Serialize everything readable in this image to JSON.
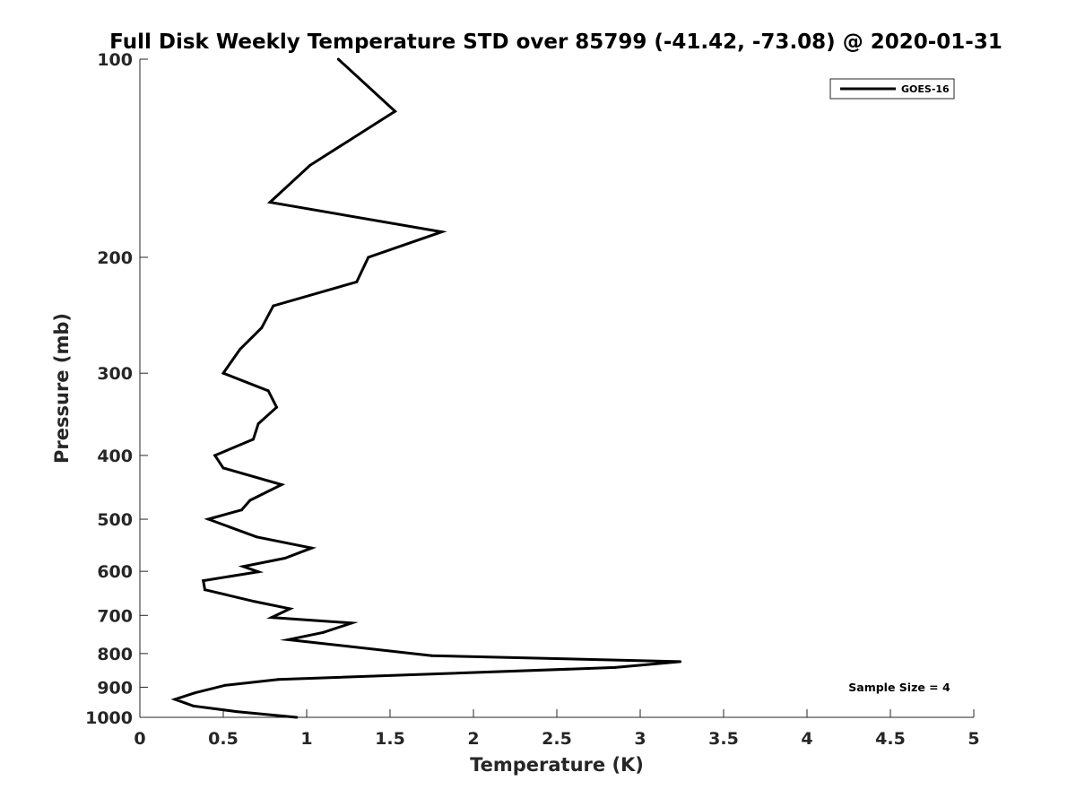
{
  "chart_data": {
    "type": "line",
    "title": "Full Disk Weekly Temperature STD over 85799 (-41.42, -73.08) @ 2020-01-31",
    "xlabel": "Temperature (K)",
    "ylabel": "Pressure (mb)",
    "xlim": [
      0,
      5
    ],
    "ylim": [
      100,
      1000
    ],
    "y_scale": "log",
    "y_reversed": true,
    "x_ticks": [
      "0",
      "0.5",
      "1",
      "1.5",
      "2",
      "2.5",
      "3",
      "3.5",
      "4",
      "4.5",
      "5"
    ],
    "y_ticks": [
      "100",
      "200",
      "300",
      "400",
      "500",
      "600",
      "700",
      "800",
      "900",
      "1000"
    ],
    "grid": false,
    "legend_position": "top-right",
    "color": "#000000",
    "series": [
      {
        "name": "GOES-16",
        "points": [
          [
            1.19,
            100
          ],
          [
            1.53,
            120
          ],
          [
            1.02,
            145
          ],
          [
            0.78,
            165
          ],
          [
            1.81,
            183
          ],
          [
            1.37,
            200
          ],
          [
            1.3,
            218
          ],
          [
            0.8,
            237
          ],
          [
            0.73,
            256
          ],
          [
            0.6,
            276
          ],
          [
            0.5,
            300
          ],
          [
            0.77,
            319
          ],
          [
            0.82,
            338
          ],
          [
            0.71,
            358
          ],
          [
            0.68,
            378
          ],
          [
            0.45,
            400
          ],
          [
            0.5,
            418
          ],
          [
            0.85,
            443
          ],
          [
            0.66,
            468
          ],
          [
            0.61,
            484
          ],
          [
            0.41,
            500
          ],
          [
            0.7,
            532
          ],
          [
            1.03,
            553
          ],
          [
            0.87,
            573
          ],
          [
            0.62,
            590
          ],
          [
            0.71,
            601
          ],
          [
            0.38,
            620
          ],
          [
            0.39,
            640
          ],
          [
            0.69,
            667
          ],
          [
            0.9,
            684
          ],
          [
            0.79,
            705
          ],
          [
            1.27,
            719
          ],
          [
            1.1,
            743
          ],
          [
            0.89,
            762
          ],
          [
            1.75,
            806
          ],
          [
            3.24,
            823
          ],
          [
            2.85,
            840
          ],
          [
            0.83,
            876
          ],
          [
            0.51,
            894
          ],
          [
            0.33,
            918
          ],
          [
            0.21,
            939
          ],
          [
            0.32,
            961
          ],
          [
            0.58,
            980
          ],
          [
            0.94,
            1000
          ]
        ]
      }
    ],
    "annotations": [
      "Sample Size = 4"
    ]
  }
}
